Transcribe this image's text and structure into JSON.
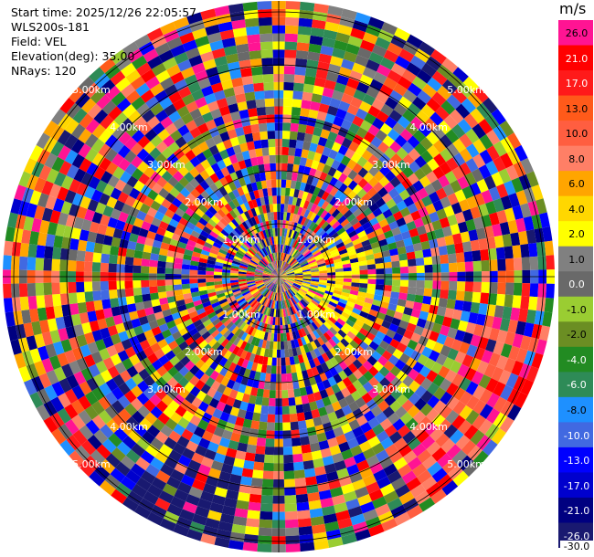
{
  "header": {
    "start_time": "Start time: 2025/12/26 22:05:57",
    "instrument": "WLS200s-181",
    "field": "Field: VEL",
    "elevation": "Elevation(deg): 35.00",
    "nrays": "NRays: 120"
  },
  "ppi": {
    "nrays": 120,
    "range_rings": [
      "1.00km",
      "2.00km",
      "3.00km",
      "4.00km",
      "5.00km"
    ],
    "max_range_km": 5.0
  },
  "colorbar": {
    "unit": "m/s",
    "bins": [
      {
        "label": "26.0",
        "color": "#ff1493"
      },
      {
        "label": "21.0",
        "color": "#ff0000"
      },
      {
        "label": "17.0",
        "color": "#ff1a1a"
      },
      {
        "label": "13.0",
        "color": "#ff5a1a"
      },
      {
        "label": "10.0",
        "color": "#ff5e40"
      },
      {
        "label": "8.0",
        "color": "#ff7f66"
      },
      {
        "label": "6.0",
        "color": "#ffa500"
      },
      {
        "label": "4.0",
        "color": "#ffd700"
      },
      {
        "label": "2.0",
        "color": "#ffff00"
      },
      {
        "label": "1.0",
        "color": "#808080"
      },
      {
        "label": "0.0",
        "color": "#696969"
      },
      {
        "label": "-1.0",
        "color": "#9acd32"
      },
      {
        "label": "-2.0",
        "color": "#6b8e23"
      },
      {
        "label": "-4.0",
        "color": "#228b22"
      },
      {
        "label": "-6.0",
        "color": "#2e8b57"
      },
      {
        "label": "-8.0",
        "color": "#1e90ff"
      },
      {
        "label": "-10.0",
        "color": "#4169e1"
      },
      {
        "label": "-13.0",
        "color": "#0000ff"
      },
      {
        "label": "-17.0",
        "color": "#0000cd"
      },
      {
        "label": "-21.0",
        "color": "#000080"
      },
      {
        "label": "-26.0",
        "color": "#191970"
      }
    ],
    "bottom_label": "-30.0"
  }
}
